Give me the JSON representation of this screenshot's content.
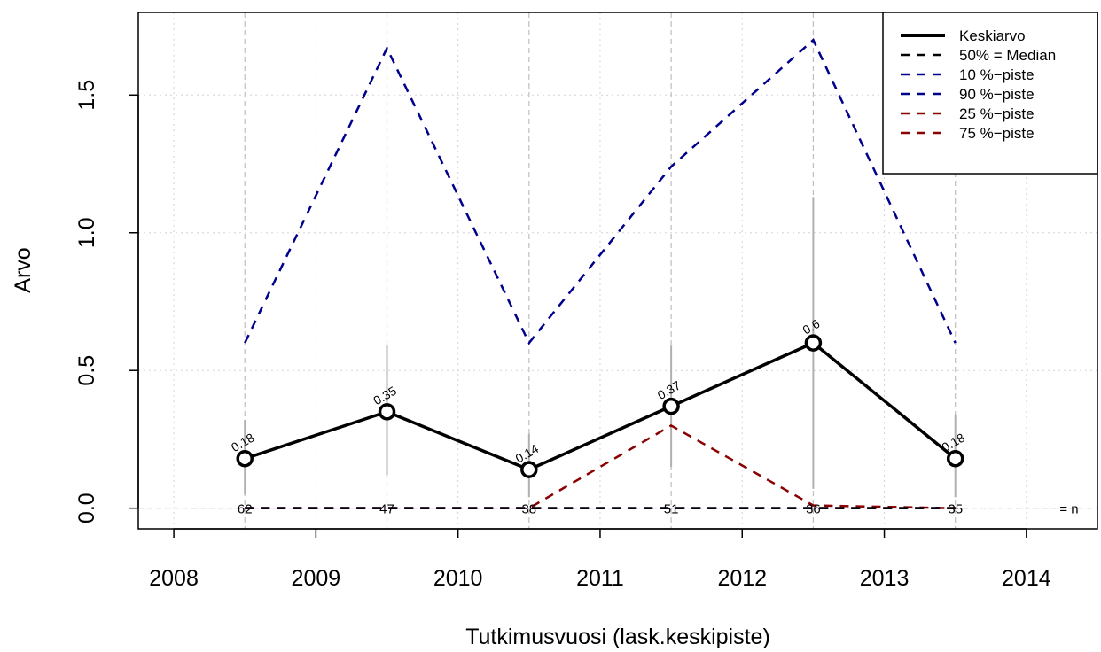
{
  "chart_data": {
    "type": "line",
    "xlabel": "Tutkimusvuosi (lask.keskipiste)",
    "ylabel": "Arvo",
    "xlim": [
      2007.75,
      2014.5
    ],
    "ylim": [
      -0.075,
      1.8
    ],
    "x_ticks": [
      2008,
      2009,
      2010,
      2011,
      2012,
      2013,
      2014
    ],
    "y_ticks": [
      0.0,
      0.5,
      1.0,
      1.5
    ],
    "y_tick_labels": [
      "0.0",
      "0.5",
      "1.0",
      "1.5"
    ],
    "grid": true,
    "legend_position": "top-right",
    "x": [
      2008.5,
      2009.5,
      2010.5,
      2011.5,
      2012.5,
      2013.5
    ],
    "series": [
      {
        "name": "Keskiarvo",
        "style": "solid",
        "color": "#000000",
        "values": [
          0.18,
          0.35,
          0.14,
          0.37,
          0.6,
          0.18
        ],
        "labels": [
          "0.18",
          "0.35",
          "0.14",
          "0.37",
          "0.6",
          "0.18"
        ]
      },
      {
        "name": "50% = Median",
        "style": "dashed",
        "color": "#000000",
        "values": [
          0,
          0,
          0,
          0,
          0,
          0
        ]
      },
      {
        "name": "10 %−piste",
        "style": "dashed",
        "color": "#00008b",
        "values": [
          0,
          0,
          0,
          0,
          0,
          0
        ]
      },
      {
        "name": "90 %−piste",
        "style": "dashed",
        "color": "#00008b",
        "values": [
          0.6,
          1.67,
          0.6,
          1.24,
          1.7,
          0.6
        ]
      },
      {
        "name": "25 %−piste",
        "style": "dashed",
        "color": "#8b0000",
        "values": [
          0,
          0,
          0,
          0,
          0,
          0
        ]
      },
      {
        "name": "75 %−piste",
        "style": "dashed",
        "color": "#8b0000",
        "values": [
          0,
          0,
          0,
          0.3,
          0.01,
          0
        ]
      }
    ],
    "error_bars": [
      {
        "x": 2008.5,
        "low": 0.05,
        "high": 0.32
      },
      {
        "x": 2009.5,
        "low": 0.12,
        "high": 0.59
      },
      {
        "x": 2010.5,
        "low": 0.04,
        "high": 0.27
      },
      {
        "x": 2011.5,
        "low": 0.15,
        "high": 0.59
      },
      {
        "x": 2012.5,
        "low": 0.07,
        "high": 1.13
      },
      {
        "x": 2013.5,
        "low": 0.04,
        "high": 0.34
      }
    ],
    "n_values": [
      "62",
      "47",
      "38",
      "51",
      "36",
      "35"
    ],
    "n_label": "= n"
  }
}
